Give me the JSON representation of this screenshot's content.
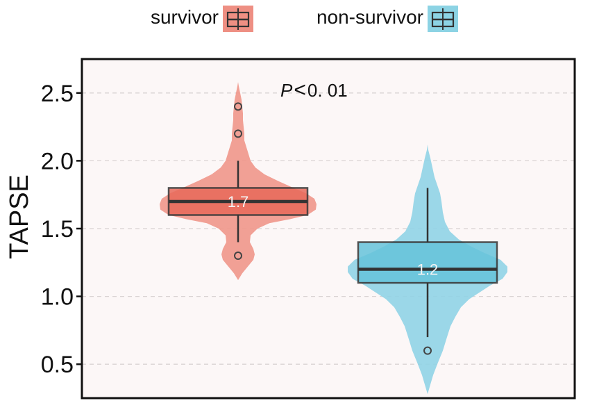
{
  "chart_data": {
    "type": "violin-box",
    "ylabel": "TAPSE",
    "xlabel": "",
    "ylim": [
      0.25,
      2.75
    ],
    "yticks": [
      0.5,
      1.0,
      1.5,
      2.0,
      2.5
    ],
    "ytick_labels": [
      "0.5",
      "1.0",
      "1.5",
      "2.0",
      "2.5"
    ],
    "grid": "horizontal-dashed",
    "legend_position": "top",
    "annotation": {
      "italic": "P",
      "symbol": "<",
      "value": "0. 01"
    },
    "series": [
      {
        "name": "survivor",
        "color": "#E8695A",
        "violin_color": "#F0968A",
        "min": 1.4,
        "q1": 1.6,
        "median": 1.7,
        "q3": 1.8,
        "max": 2.0,
        "median_label": "1.7",
        "outliers": [
          2.4,
          2.2,
          1.3
        ],
        "violin_range": [
          1.12,
          2.58
        ]
      },
      {
        "name": "non-survivor",
        "color": "#66C4DB",
        "violin_color": "#90D3E5",
        "min": 0.7,
        "q1": 1.1,
        "median": 1.2,
        "q3": 1.4,
        "max": 1.8,
        "median_label": "1.2",
        "outliers": [
          0.6
        ],
        "violin_range": [
          0.28,
          2.12
        ]
      }
    ]
  }
}
